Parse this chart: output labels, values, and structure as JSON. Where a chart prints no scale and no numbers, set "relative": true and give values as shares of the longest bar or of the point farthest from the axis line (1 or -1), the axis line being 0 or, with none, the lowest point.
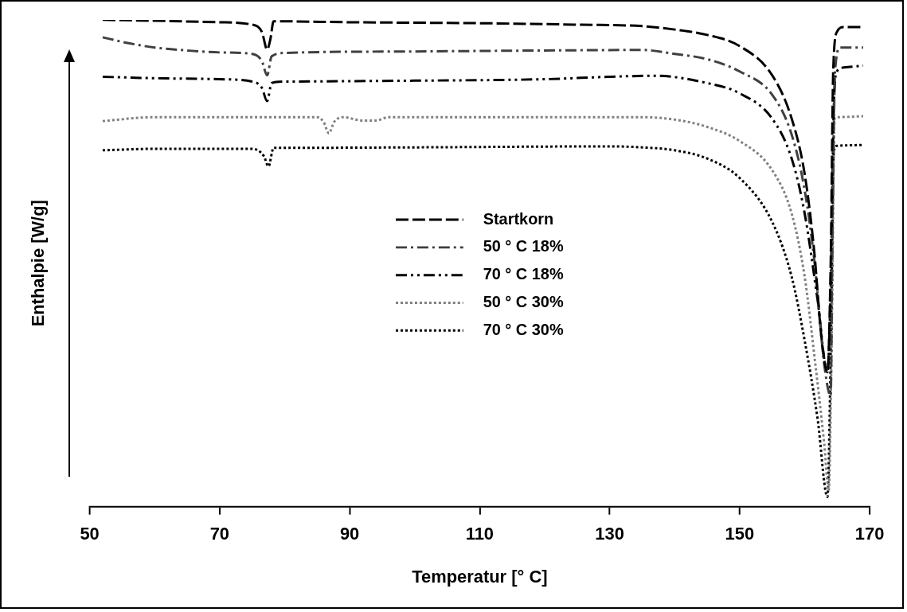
{
  "chart_data": {
    "type": "line",
    "relative": true,
    "xlabel": "Temperatur [° C]",
    "ylabel": "Enthalpie [W/g]",
    "xlim": [
      50,
      170
    ],
    "xticks": [
      50,
      70,
      90,
      110,
      130,
      150,
      170
    ],
    "tick_labels": "x",
    "grid": false,
    "legend": "center",
    "series": [
      {
        "name": "Startkorn",
        "color": "#000000",
        "line_style": "dashed",
        "x": [
          52,
          60,
          70,
          75,
          76.5,
          77.3,
          77.8,
          78.3,
          90,
          110,
          125,
          135,
          140,
          145,
          150,
          155,
          158,
          160,
          161.5,
          162.5,
          163.5,
          164,
          164.4,
          165,
          166,
          169
        ],
        "values": [
          1.0,
          0.998,
          0.995,
          0.99,
          0.975,
          0.939,
          0.96,
          0.997,
          0.995,
          0.993,
          0.99,
          0.987,
          0.98,
          0.969,
          0.946,
          0.886,
          0.797,
          0.683,
          0.52,
          0.358,
          0.276,
          0.5,
          0.9,
          0.976,
          0.985,
          0.985
        ]
      },
      {
        "name": "50 ° C 18%",
        "color": "#404040",
        "line_style": "dashdot",
        "x": [
          52,
          56,
          60,
          65,
          70,
          75,
          76.5,
          77.3,
          78,
          80,
          100,
          120,
          135,
          140,
          145,
          150,
          155,
          158,
          160,
          161.5,
          163,
          164,
          164.3,
          164.7,
          165.5,
          169
        ],
        "values": [
          0.964,
          0.952,
          0.943,
          0.937,
          0.933,
          0.93,
          0.915,
          0.886,
          0.925,
          0.932,
          0.935,
          0.937,
          0.938,
          0.93,
          0.919,
          0.894,
          0.846,
          0.764,
          0.65,
          0.504,
          0.293,
          0.228,
          0.6,
          0.9,
          0.943,
          0.943
        ]
      },
      {
        "name": "70 ° C 18%",
        "color": "#000000",
        "line_style": "dashdotdot",
        "x": [
          52,
          60,
          70,
          75,
          76.5,
          77.3,
          78,
          80,
          100,
          120,
          130,
          137,
          145,
          150,
          155,
          158,
          160,
          162,
          163.5,
          164,
          164.5,
          165,
          166,
          169
        ],
        "values": [
          0.883,
          0.88,
          0.878,
          0.873,
          0.86,
          0.833,
          0.87,
          0.873,
          0.875,
          0.878,
          0.883,
          0.885,
          0.87,
          0.849,
          0.797,
          0.715,
          0.602,
          0.423,
          0.276,
          0.45,
          0.829,
          0.895,
          0.902,
          0.906
        ]
      },
      {
        "name": "50 ° C 30%",
        "color": "#808080",
        "line_style": "dotted",
        "x": [
          52,
          60,
          70,
          85,
          86,
          86.8,
          87.6,
          89,
          92,
          94,
          96,
          110,
          135,
          140,
          145,
          150,
          155,
          158,
          160,
          161.5,
          163,
          163.7,
          164.2,
          164.6,
          165,
          169
        ],
        "values": [
          0.792,
          0.8,
          0.8,
          0.8,
          0.79,
          0.767,
          0.79,
          0.8,
          0.793,
          0.793,
          0.8,
          0.8,
          0.8,
          0.795,
          0.78,
          0.751,
          0.691,
          0.602,
          0.472,
          0.309,
          0.13,
          0.033,
          0.39,
          0.797,
          0.8,
          0.802
        ]
      },
      {
        "name": "70 ° C 30%",
        "color": "#000000",
        "line_style": "dotted",
        "x": [
          52,
          60,
          75,
          76.8,
          77.5,
          78.3,
          80,
          100,
          130,
          135,
          140,
          145,
          150,
          155,
          158,
          160,
          162,
          163.5,
          164,
          164.5,
          165,
          169
        ],
        "values": [
          0.732,
          0.735,
          0.735,
          0.72,
          0.699,
          0.737,
          0.737,
          0.738,
          0.74,
          0.738,
          0.732,
          0.715,
          0.675,
          0.585,
          0.472,
          0.341,
          0.179,
          0.02,
          0.309,
          0.732,
          0.741,
          0.743
        ]
      }
    ]
  }
}
